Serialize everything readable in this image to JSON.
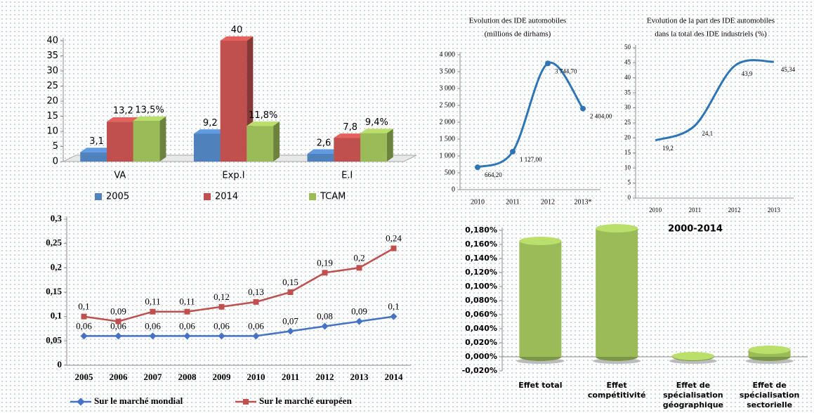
{
  "chart_data": [
    {
      "type": "bar",
      "categories": [
        "VA",
        "Exp.I",
        "E.I"
      ],
      "series": [
        {
          "name": "2005",
          "color": "#4f81bd",
          "values": [
            3.1,
            9.2,
            2.6
          ],
          "value_labels": [
            "3,1",
            "9,2",
            "2,6"
          ]
        },
        {
          "name": "2014",
          "color": "#c0504d",
          "values": [
            13.2,
            40,
            7.8
          ],
          "value_labels": [
            "13,2",
            "40",
            "7,8"
          ]
        },
        {
          "name": "TCAM",
          "color": "#9bbb59",
          "values": [
            13.5,
            11.8,
            9.4
          ],
          "value_labels": [
            "13,5%",
            "11,8%",
            "9,4%"
          ]
        }
      ],
      "ylim": [
        0,
        40
      ],
      "yticks": [
        0,
        5,
        10,
        15,
        20,
        25,
        30,
        35,
        40
      ],
      "legend": "bottom"
    },
    {
      "type": "line",
      "title": "Evolution des IDE automobiles",
      "subtitle": "(millions de dirhams)",
      "categories": [
        "2010",
        "2011",
        "2012",
        "2013*"
      ],
      "series": [
        {
          "color": "#2e75b6",
          "marker": "circle",
          "values": [
            664.2,
            1127.0,
            3744.7,
            2404.0
          ],
          "value_labels": [
            "664,20",
            "1 127,00",
            "3 744,70",
            "2 404,00"
          ]
        }
      ],
      "smooth": true,
      "ylim": [
        0,
        4000
      ],
      "yticks": [
        0,
        {
          "value": 500,
          "label": "500"
        },
        {
          "value": 1000,
          "label": "1 000"
        },
        {
          "value": 1500,
          "label": "1 500"
        },
        {
          "value": 2000,
          "label": "2 000"
        },
        {
          "value": 2500,
          "label": "2 500"
        },
        {
          "value": 3000,
          "label": "3 000"
        },
        {
          "value": 3500,
          "label": "3 500"
        },
        {
          "value": 4000,
          "label": "4 000"
        }
      ]
    },
    {
      "type": "line",
      "title": "Evolution de la part des IDE automobiles",
      "subtitle": "dans la total des IDE industriels  (%)",
      "categories": [
        "2010",
        "2011",
        "2012",
        "2013"
      ],
      "series": [
        {
          "color": "#2e75b6",
          "values": [
            19.2,
            24.1,
            43.9,
            45.34
          ],
          "value_labels": [
            "19,2",
            "24,1",
            "43,9",
            "45,34"
          ]
        }
      ],
      "smooth": true,
      "ylim": [
        0,
        50
      ],
      "yticks": [
        0,
        5,
        10,
        15,
        20,
        25,
        30,
        35,
        40,
        45,
        50
      ]
    },
    {
      "type": "line",
      "categories": [
        "2005",
        "2006",
        "2007",
        "2008",
        "2009",
        "2010",
        "2011",
        "2012",
        "2013",
        "2014"
      ],
      "series": [
        {
          "name": "Sur le marché mondial",
          "color": "#4472c4",
          "marker": "diamond",
          "values": [
            0.06,
            0.06,
            0.06,
            0.06,
            0.06,
            0.06,
            0.07,
            0.08,
            0.09,
            0.1
          ],
          "value_labels": [
            "0,06",
            "0,06",
            "0,06",
            "0,06",
            "0,06",
            "0,06",
            "0,07",
            "0,08",
            "0,09",
            "0,1"
          ]
        },
        {
          "name": "Sur le marché européen",
          "color": "#c0504d",
          "marker": "square",
          "values": [
            0.1,
            0.09,
            0.11,
            0.11,
            0.12,
            0.13,
            0.15,
            0.19,
            0.2,
            0.24
          ],
          "value_labels": [
            "0,1",
            "0,09",
            "0,11",
            "0,11",
            "0,12",
            "0,13",
            "0,15",
            "0,19",
            "0,2",
            "0,24"
          ]
        }
      ],
      "ylim": [
        0,
        0.3
      ],
      "yticks": [
        0,
        {
          "value": 0.05,
          "label": "0,05"
        },
        {
          "value": 0.1,
          "label": "0,1"
        },
        {
          "value": 0.15,
          "label": "0,15"
        },
        {
          "value": 0.2,
          "label": "0,2"
        },
        {
          "value": 0.25,
          "label": "0,25"
        },
        {
          "value": 0.3,
          "label": "0,3"
        }
      ],
      "legend": "bottom"
    },
    {
      "type": "bar",
      "shape": "cylinder",
      "title": "2000-2014",
      "categories": [
        "Effet total",
        "Effet compétitivité",
        "Effet de spécialisation géographique",
        "Effet de spécialisation sectorielle"
      ],
      "series": [
        {
          "color": "#9bbb59",
          "values": [
            0.165,
            0.183,
            0.001,
            0.01
          ]
        }
      ],
      "ylim": [
        -0.02,
        0.18
      ],
      "yticks": [
        {
          "value": -0.02,
          "label": "-0,020%"
        },
        {
          "value": 0,
          "label": "0,000%"
        },
        {
          "value": 0.02,
          "label": "0,020%"
        },
        {
          "value": 0.04,
          "label": "0,040%"
        },
        {
          "value": 0.06,
          "label": "0,060%"
        },
        {
          "value": 0.08,
          "label": "0,080%"
        },
        {
          "value": 0.1,
          "label": "0,100%"
        },
        {
          "value": 0.12,
          "label": "0,120%"
        },
        {
          "value": 0.14,
          "label": "0,140%"
        },
        {
          "value": 0.16,
          "label": "0,160%"
        },
        {
          "value": 0.18,
          "label": "0,180%"
        }
      ]
    }
  ]
}
